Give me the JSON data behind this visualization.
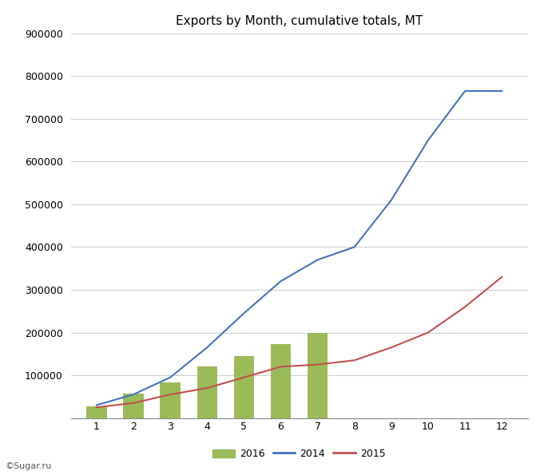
{
  "title": "Exports by Month, cumulative totals, MT",
  "months": [
    1,
    2,
    3,
    4,
    5,
    6,
    7,
    8,
    9,
    10,
    11,
    12
  ],
  "data_2014": [
    30000,
    55000,
    95000,
    165000,
    245000,
    320000,
    370000,
    400000,
    510000,
    650000,
    765000,
    765000
  ],
  "data_2015": [
    25000,
    35000,
    55000,
    70000,
    95000,
    120000,
    125000,
    135000,
    165000,
    200000,
    260000,
    330000
  ],
  "data_2016_bars": [
    28000,
    58000,
    83000,
    120000,
    145000,
    172000,
    200000,
    null,
    null,
    null,
    null,
    null
  ],
  "color_2014": "#4472C4",
  "color_2015": "#C0504D",
  "color_2016": "#9BBB59",
  "ylim": [
    0,
    900000
  ],
  "yticks": [
    0,
    100000,
    200000,
    300000,
    400000,
    500000,
    600000,
    700000,
    800000,
    900000
  ],
  "ytick_labels": [
    "",
    "100000",
    "200000",
    "300000",
    "400000",
    "500000",
    "600000",
    "700000",
    "800000",
    "900000"
  ],
  "watermark": "©Sugar.ru",
  "legend_labels": [
    "2016",
    "2014",
    "2015"
  ],
  "bg_color": "#FFFFFF",
  "grid_color": "#D0D0D0"
}
